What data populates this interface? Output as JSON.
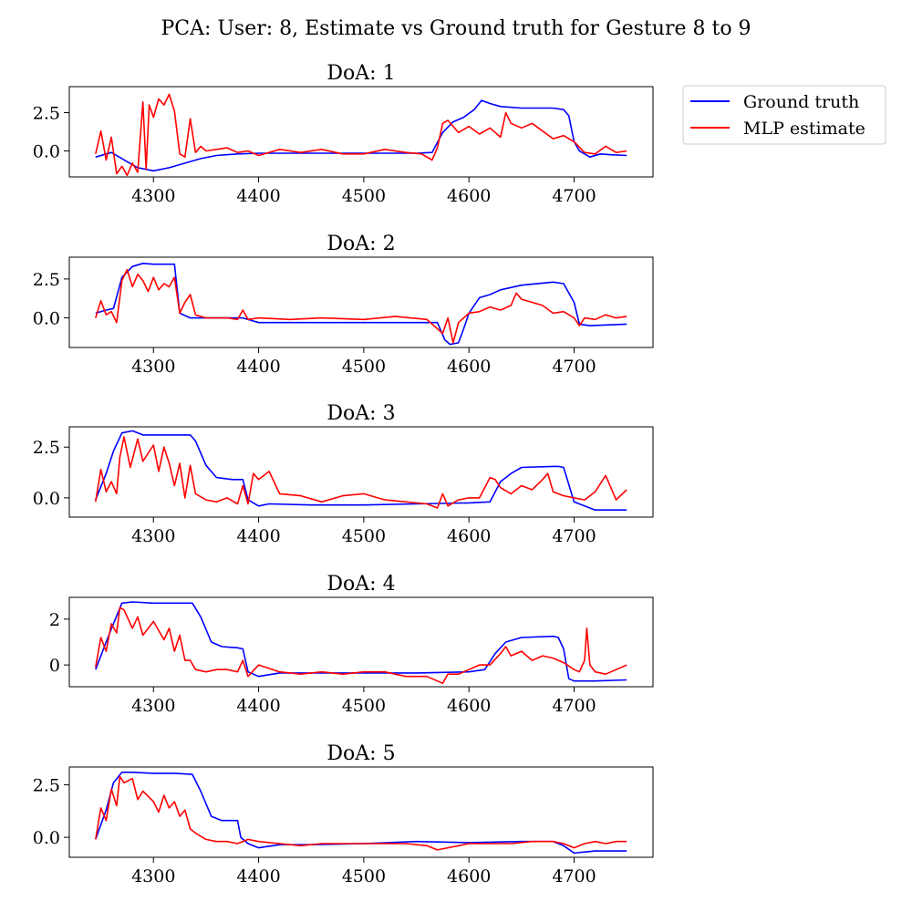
{
  "figure": {
    "title": "PCA: User: 8, Estimate vs Ground truth for Gesture 8 to 9"
  },
  "legend": {
    "placement": "outside-top-right",
    "items": [
      {
        "label": "Ground truth",
        "color": "#0000ff"
      },
      {
        "label": "MLP estimate",
        "color": "#ff0000"
      }
    ]
  },
  "chart_data": [
    {
      "type": "line",
      "title": "DoA: 1",
      "xlim": [
        4220,
        4775
      ],
      "ylim": [
        -1.7,
        4.2
      ],
      "xticks": [
        4300,
        4400,
        4500,
        4600,
        4700
      ],
      "xtick_labels": [
        "4300",
        "4400",
        "4500",
        "4600",
        "4700"
      ],
      "yticks": [
        0.0,
        2.5
      ],
      "ytick_labels": [
        "0.0",
        "2.5"
      ],
      "series": [
        {
          "name": "Ground truth",
          "color": "#0000ff",
          "x": [
            4245,
            4260,
            4270,
            4285,
            4300,
            4315,
            4330,
            4345,
            4360,
            4380,
            4400,
            4450,
            4500,
            4550,
            4565,
            4575,
            4585,
            4595,
            4605,
            4612,
            4620,
            4630,
            4650,
            4680,
            4690,
            4695,
            4700,
            4705,
            4715,
            4725,
            4735,
            4750
          ],
          "y": [
            -0.4,
            -0.1,
            -0.5,
            -1.1,
            -1.3,
            -1.1,
            -0.8,
            -0.5,
            -0.3,
            -0.2,
            -0.15,
            -0.15,
            -0.15,
            -0.15,
            -0.1,
            1.2,
            1.9,
            2.2,
            2.7,
            3.3,
            3.1,
            2.9,
            2.8,
            2.8,
            2.7,
            2.3,
            0.6,
            0.0,
            -0.4,
            -0.2,
            -0.25,
            -0.3
          ]
        },
        {
          "name": "MLP estimate",
          "color": "#ff0000",
          "x": [
            4245,
            4250,
            4255,
            4260,
            4265,
            4270,
            4275,
            4280,
            4285,
            4290,
            4293,
            4296,
            4300,
            4305,
            4310,
            4315,
            4320,
            4325,
            4330,
            4335,
            4340,
            4345,
            4350,
            4360,
            4370,
            4380,
            4390,
            4400,
            4420,
            4440,
            4460,
            4480,
            4500,
            4520,
            4540,
            4555,
            4565,
            4570,
            4575,
            4580,
            4590,
            4600,
            4610,
            4620,
            4630,
            4635,
            4640,
            4650,
            4660,
            4670,
            4680,
            4690,
            4700,
            4710,
            4720,
            4730,
            4740,
            4750
          ],
          "y": [
            -0.2,
            1.3,
            -0.6,
            0.9,
            -1.5,
            -1.0,
            -1.6,
            -0.8,
            -1.4,
            3.2,
            -1.2,
            3.0,
            2.2,
            3.4,
            3.0,
            3.7,
            2.6,
            -0.2,
            -0.4,
            2.1,
            -0.1,
            0.3,
            0.0,
            0.1,
            0.2,
            -0.1,
            0.0,
            -0.3,
            0.1,
            -0.1,
            0.1,
            -0.2,
            -0.2,
            0.1,
            -0.1,
            -0.2,
            -0.6,
            0.2,
            1.8,
            2.0,
            1.2,
            1.6,
            1.1,
            1.5,
            0.9,
            2.5,
            1.8,
            1.5,
            1.8,
            1.3,
            0.8,
            1.0,
            0.6,
            -0.1,
            -0.2,
            0.3,
            -0.1,
            0.0
          ]
        }
      ]
    },
    {
      "type": "line",
      "title": "DoA: 2",
      "xlim": [
        4220,
        4775
      ],
      "ylim": [
        -1.9,
        3.9
      ],
      "xticks": [
        4300,
        4400,
        4500,
        4600,
        4700
      ],
      "xtick_labels": [
        "4300",
        "4400",
        "4500",
        "4600",
        "4700"
      ],
      "yticks": [
        0.0,
        2.5
      ],
      "ytick_labels": [
        "0.0",
        "2.5"
      ],
      "series": [
        {
          "name": "Ground truth",
          "color": "#0000ff",
          "x": [
            4245,
            4255,
            4262,
            4270,
            4280,
            4290,
            4300,
            4310,
            4320,
            4325,
            4335,
            4350,
            4370,
            4385,
            4400,
            4450,
            4500,
            4550,
            4570,
            4577,
            4582,
            4590,
            4595,
            4600,
            4610,
            4620,
            4630,
            4650,
            4680,
            4690,
            4700,
            4705,
            4715,
            4750
          ],
          "y": [
            0.3,
            0.5,
            0.6,
            2.6,
            3.3,
            3.5,
            3.45,
            3.45,
            3.45,
            0.3,
            0.0,
            0.0,
            0.0,
            0.0,
            -0.3,
            -0.3,
            -0.3,
            -0.3,
            -0.3,
            -1.4,
            -1.7,
            -1.6,
            -0.7,
            0.3,
            1.3,
            1.5,
            1.8,
            2.1,
            2.3,
            2.2,
            1.0,
            -0.4,
            -0.5,
            -0.4
          ]
        },
        {
          "name": "MLP estimate",
          "color": "#ff0000",
          "x": [
            4245,
            4250,
            4255,
            4260,
            4265,
            4270,
            4275,
            4280,
            4285,
            4290,
            4295,
            4300,
            4305,
            4310,
            4315,
            4320,
            4325,
            4330,
            4335,
            4340,
            4350,
            4370,
            4380,
            4385,
            4390,
            4400,
            4430,
            4460,
            4500,
            4530,
            4560,
            4575,
            4580,
            4585,
            4590,
            4600,
            4610,
            4620,
            4630,
            4640,
            4645,
            4650,
            4660,
            4670,
            4680,
            4690,
            4700,
            4705,
            4710,
            4720,
            4730,
            4740,
            4750
          ],
          "y": [
            0.0,
            1.1,
            0.2,
            0.4,
            -0.3,
            2.4,
            3.1,
            2.0,
            2.8,
            2.4,
            1.7,
            2.6,
            1.8,
            2.2,
            2.0,
            2.6,
            0.3,
            1.0,
            1.5,
            0.2,
            0.0,
            0.0,
            -0.1,
            0.5,
            -0.1,
            0.0,
            -0.1,
            0.0,
            -0.1,
            0.1,
            -0.1,
            -1.0,
            0.0,
            -1.6,
            -0.3,
            0.3,
            0.4,
            0.7,
            0.5,
            0.8,
            1.6,
            1.2,
            1.0,
            0.8,
            0.3,
            0.4,
            0.0,
            -0.5,
            0.0,
            -0.1,
            0.2,
            0.0,
            0.1
          ]
        }
      ]
    },
    {
      "type": "line",
      "title": "DoA: 3",
      "xlim": [
        4220,
        4775
      ],
      "ylim": [
        -0.95,
        3.5
      ],
      "xticks": [
        4300,
        4400,
        4500,
        4600,
        4700
      ],
      "xtick_labels": [
        "4300",
        "4400",
        "4500",
        "4600",
        "4700"
      ],
      "yticks": [
        0.0,
        2.5
      ],
      "ytick_labels": [
        "0.0",
        "2.5"
      ],
      "series": [
        {
          "name": "Ground truth",
          "color": "#0000ff",
          "x": [
            4245,
            4255,
            4262,
            4270,
            4280,
            4290,
            4300,
            4320,
            4335,
            4340,
            4350,
            4360,
            4375,
            4385,
            4390,
            4400,
            4410,
            4450,
            4500,
            4550,
            4600,
            4620,
            4630,
            4640,
            4650,
            4680,
            4685,
            4690,
            4700,
            4710,
            4720,
            4750
          ],
          "y": [
            -0.1,
            1.2,
            2.3,
            3.2,
            3.3,
            3.1,
            3.1,
            3.1,
            3.1,
            2.8,
            1.6,
            1.0,
            0.9,
            0.9,
            -0.1,
            -0.4,
            -0.3,
            -0.35,
            -0.35,
            -0.3,
            -0.25,
            -0.2,
            0.8,
            1.2,
            1.5,
            1.55,
            1.55,
            1.5,
            -0.2,
            -0.4,
            -0.6,
            -0.6
          ]
        },
        {
          "name": "MLP estimate",
          "color": "#ff0000",
          "x": [
            4245,
            4250,
            4255,
            4260,
            4265,
            4268,
            4272,
            4278,
            4285,
            4290,
            4300,
            4305,
            4310,
            4315,
            4320,
            4325,
            4330,
            4335,
            4340,
            4350,
            4360,
            4370,
            4380,
            4385,
            4390,
            4395,
            4400,
            4410,
            4420,
            4440,
            4460,
            4480,
            4500,
            4520,
            4540,
            4560,
            4570,
            4575,
            4580,
            4590,
            4600,
            4610,
            4620,
            4625,
            4630,
            4640,
            4650,
            4660,
            4670,
            4675,
            4680,
            4690,
            4700,
            4710,
            4720,
            4730,
            4740,
            4750
          ],
          "y": [
            -0.2,
            1.4,
            0.3,
            0.8,
            0.2,
            2.0,
            3.0,
            1.5,
            2.9,
            1.8,
            2.6,
            1.3,
            2.5,
            1.7,
            0.6,
            1.7,
            0.0,
            1.6,
            0.2,
            -0.1,
            -0.2,
            0.0,
            -0.3,
            0.6,
            -0.3,
            1.2,
            0.9,
            1.3,
            0.2,
            0.1,
            -0.2,
            0.1,
            0.2,
            -0.1,
            -0.2,
            -0.3,
            -0.5,
            0.2,
            -0.4,
            -0.1,
            0.0,
            0.0,
            1.0,
            0.9,
            0.5,
            0.2,
            0.6,
            0.4,
            0.9,
            1.2,
            0.3,
            0.1,
            0.0,
            -0.1,
            0.3,
            1.1,
            -0.1,
            0.4
          ]
        }
      ]
    },
    {
      "type": "line",
      "title": "DoA: 4",
      "xlim": [
        4220,
        4775
      ],
      "ylim": [
        -0.95,
        2.95
      ],
      "xticks": [
        4300,
        4400,
        4500,
        4600,
        4700
      ],
      "xtick_labels": [
        "4300",
        "4400",
        "4500",
        "4600",
        "4700"
      ],
      "yticks": [
        0,
        2
      ],
      "ytick_labels": [
        "0",
        "2"
      ],
      "series": [
        {
          "name": "Ground truth",
          "color": "#0000ff",
          "x": [
            4245,
            4255,
            4262,
            4270,
            4280,
            4300,
            4320,
            4337,
            4345,
            4355,
            4365,
            4380,
            4385,
            4390,
            4400,
            4420,
            4450,
            4500,
            4550,
            4600,
            4615,
            4625,
            4635,
            4650,
            4680,
            4685,
            4690,
            4695,
            4700,
            4720,
            4750
          ],
          "y": [
            -0.2,
            1.0,
            1.8,
            2.7,
            2.75,
            2.7,
            2.7,
            2.7,
            2.1,
            1.0,
            0.8,
            0.75,
            0.7,
            -0.3,
            -0.5,
            -0.35,
            -0.35,
            -0.35,
            -0.35,
            -0.3,
            -0.2,
            0.5,
            1.0,
            1.2,
            1.25,
            1.2,
            0.7,
            -0.6,
            -0.7,
            -0.7,
            -0.65
          ]
        },
        {
          "name": "MLP estimate",
          "color": "#ff0000",
          "x": [
            4245,
            4250,
            4255,
            4260,
            4265,
            4268,
            4272,
            4280,
            4285,
            4290,
            4300,
            4305,
            4310,
            4315,
            4320,
            4325,
            4330,
            4335,
            4340,
            4350,
            4360,
            4370,
            4380,
            4385,
            4390,
            4400,
            4420,
            4440,
            4460,
            4480,
            4500,
            4520,
            4540,
            4560,
            4575,
            4580,
            4590,
            4600,
            4610,
            4620,
            4630,
            4635,
            4640,
            4650,
            4660,
            4670,
            4680,
            4690,
            4700,
            4705,
            4710,
            4712,
            4715,
            4720,
            4730,
            4740,
            4750
          ],
          "y": [
            -0.1,
            1.2,
            0.6,
            1.8,
            1.4,
            2.5,
            2.4,
            1.6,
            2.1,
            1.3,
            1.9,
            1.5,
            1.1,
            1.6,
            0.6,
            1.3,
            0.2,
            0.2,
            -0.2,
            -0.3,
            -0.2,
            -0.2,
            -0.3,
            0.2,
            -0.5,
            0.0,
            -0.3,
            -0.4,
            -0.3,
            -0.4,
            -0.3,
            -0.3,
            -0.5,
            -0.5,
            -0.8,
            -0.4,
            -0.4,
            -0.2,
            0.0,
            0.0,
            0.5,
            0.8,
            0.4,
            0.6,
            0.2,
            0.4,
            0.3,
            0.1,
            -0.2,
            -0.3,
            0.2,
            1.6,
            0.0,
            -0.3,
            -0.4,
            -0.2,
            0.0
          ]
        }
      ]
    },
    {
      "type": "line",
      "title": "DoA: 5",
      "xlim": [
        4220,
        4775
      ],
      "ylim": [
        -0.95,
        3.35
      ],
      "xticks": [
        4300,
        4400,
        4500,
        4600,
        4700
      ],
      "xtick_labels": [
        "4300",
        "4400",
        "4500",
        "4600",
        "4700"
      ],
      "yticks": [
        0.0,
        2.5
      ],
      "ytick_labels": [
        "0.0",
        "2.5"
      ],
      "series": [
        {
          "name": "Ground truth",
          "color": "#0000ff",
          "x": [
            4245,
            4255,
            4262,
            4270,
            4280,
            4300,
            4320,
            4337,
            4345,
            4355,
            4365,
            4380,
            4383,
            4390,
            4400,
            4420,
            4450,
            4500,
            4550,
            4600,
            4650,
            4680,
            4690,
            4700,
            4720,
            4750
          ],
          "y": [
            -0.1,
            1.3,
            2.6,
            3.1,
            3.1,
            3.05,
            3.05,
            3.0,
            2.2,
            1.0,
            0.8,
            0.8,
            0.0,
            -0.3,
            -0.5,
            -0.35,
            -0.35,
            -0.3,
            -0.2,
            -0.25,
            -0.2,
            -0.2,
            -0.4,
            -0.75,
            -0.65,
            -0.65
          ]
        },
        {
          "name": "MLP estimate",
          "color": "#ff0000",
          "x": [
            4245,
            4250,
            4255,
            4260,
            4265,
            4268,
            4272,
            4280,
            4285,
            4290,
            4300,
            4305,
            4310,
            4315,
            4320,
            4325,
            4330,
            4335,
            4340,
            4350,
            4360,
            4370,
            4380,
            4390,
            4400,
            4420,
            4440,
            4460,
            4500,
            4540,
            4560,
            4570,
            4580,
            4590,
            4600,
            4620,
            4640,
            4660,
            4680,
            4690,
            4700,
            4710,
            4720,
            4730,
            4740,
            4750
          ],
          "y": [
            -0.1,
            1.4,
            0.8,
            2.3,
            1.5,
            2.9,
            2.6,
            2.8,
            1.8,
            2.2,
            1.7,
            1.2,
            2.0,
            1.4,
            1.7,
            1.0,
            1.3,
            0.4,
            0.2,
            -0.1,
            -0.2,
            -0.2,
            -0.3,
            -0.1,
            -0.2,
            -0.3,
            -0.4,
            -0.3,
            -0.3,
            -0.3,
            -0.4,
            -0.6,
            -0.5,
            -0.4,
            -0.3,
            -0.3,
            -0.3,
            -0.2,
            -0.2,
            -0.3,
            -0.5,
            -0.3,
            -0.2,
            -0.3,
            -0.2,
            -0.2
          ]
        }
      ]
    }
  ]
}
